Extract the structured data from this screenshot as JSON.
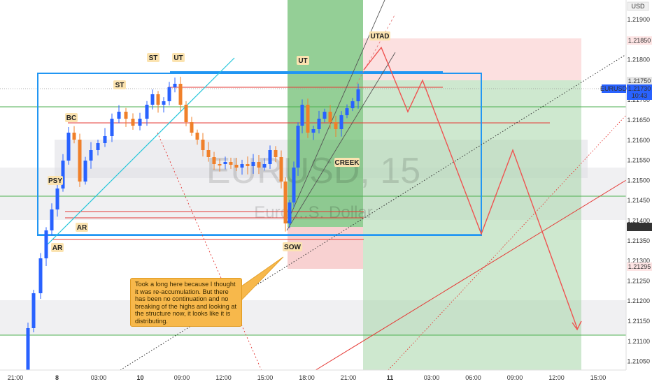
{
  "chart_data": {
    "type": "candlestick",
    "symbol_watermark": "EURUSD, 15",
    "symbol_subtitle_watermark": "Euro ...S. Dollar",
    "currency": "USD",
    "y_ticks": [
      "1.21900",
      "1.21850",
      "1.21800",
      "1.21750",
      "1.21700",
      "1.21650",
      "1.21600",
      "1.21550",
      "1.21500",
      "1.21450",
      "1.21400",
      "1.21350",
      "1.21300",
      "1.21250",
      "1.21200",
      "1.21150",
      "1.21100",
      "1.21050"
    ],
    "x_ticks": [
      "21:00",
      "8",
      "03:00",
      "10",
      "09:00",
      "12:00",
      "15:00",
      "18:00",
      "21:00",
      "11",
      "03:00",
      "06:00",
      "09:00",
      "12:00",
      "15:00"
    ],
    "price_badges": {
      "upper": "1.21850",
      "current_label": "1.21750",
      "eurusd_symbol": "EURUSD",
      "eurusd_price": "1.21730",
      "eurusd_countdown": "10:43",
      "lower": "1.21395",
      "stop": "1.21295"
    },
    "annotations": [
      "PSY",
      "BC",
      "ST",
      "ST",
      "UT",
      "UT",
      "UTAD",
      "AR",
      "AR",
      "CREEK",
      "SOW"
    ],
    "note": "Took a long here because I thought it was re-accumulation. But there has been no continuation and no breaking of the highs and looking at the structure now, it looks like it is distributing.",
    "y_range": [
      1.2102,
      1.2197
    ],
    "colors": {
      "up": "#2962ff",
      "down": "#f0802a",
      "box": "#2196f3",
      "green_zone": "#4caf50",
      "red_zone": "#ef5350"
    }
  },
  "labels": {
    "psy": "PSY",
    "bc": "BC",
    "st1": "ST",
    "st2": "ST",
    "ut1": "UT",
    "ut2": "UT",
    "utad": "UTAD",
    "ar1": "AR",
    "ar2": "AR",
    "creek": "CREEK",
    "sow": "SOW"
  }
}
